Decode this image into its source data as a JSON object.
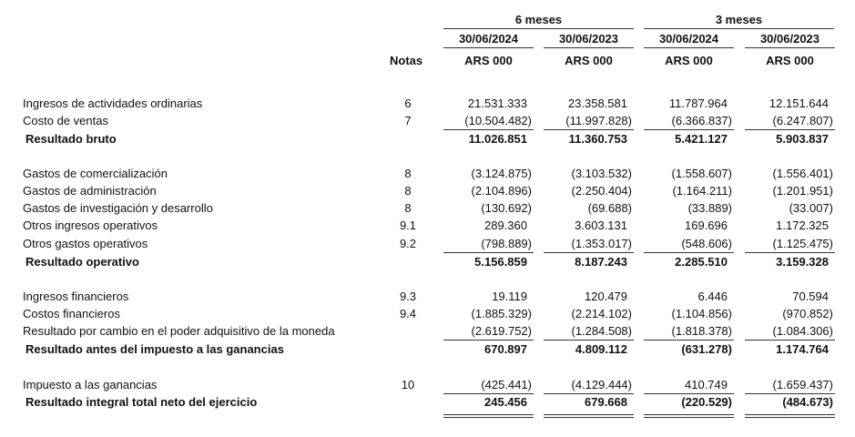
{
  "header": {
    "groups": [
      "6 meses",
      "3 meses"
    ],
    "dates": [
      "30/06/2024",
      "30/06/2023",
      "30/06/2024",
      "30/06/2023"
    ],
    "notes_label": "Notas",
    "currency": [
      "ARS 000",
      "ARS 000",
      "ARS 000",
      "ARS 000"
    ]
  },
  "rows": [
    {
      "label": "Ingresos de actividades ordinarias",
      "note": "6",
      "values": [
        "21.531.333",
        "23.358.581",
        "11.787.964",
        "12.151.644"
      ],
      "bold": false
    },
    {
      "label": "Costo de ventas",
      "note": "7",
      "values": [
        "(10.504.482)",
        "(11.997.828)",
        "(6.366.837)",
        "(6.247.807)"
      ],
      "bold": false
    },
    {
      "label": "Resultado bruto",
      "note": "",
      "values": [
        "11.026.851",
        "11.360.753",
        "5.421.127",
        "5.903.837"
      ],
      "bold": true
    },
    {
      "label": "Gastos de comercialización",
      "note": "8",
      "values": [
        "(3.124.875)",
        "(3.103.532)",
        "(1.558.607)",
        "(1.556.401)"
      ],
      "bold": false
    },
    {
      "label": "Gastos de administración",
      "note": "8",
      "values": [
        "(2.104.896)",
        "(2.250.404)",
        "(1.164.211)",
        "(1.201.951)"
      ],
      "bold": false
    },
    {
      "label": "Gastos de investigación y desarrollo",
      "note": "8",
      "values": [
        "(130.692)",
        "(69.688)",
        "(33.889)",
        "(33.007)"
      ],
      "bold": false
    },
    {
      "label": "Otros ingresos operativos",
      "note": "9.1",
      "values": [
        "289.360",
        "3.603.131",
        "169.696",
        "1.172.325"
      ],
      "bold": false
    },
    {
      "label": "Otros gastos operativos",
      "note": "9.2",
      "values": [
        "(798.889)",
        "(1.353.017)",
        "(548.606)",
        "(1.125.475)"
      ],
      "bold": false
    },
    {
      "label": "Resultado operativo",
      "note": "",
      "values": [
        "5.156.859",
        "8.187.243",
        "2.285.510",
        "3.159.328"
      ],
      "bold": true
    },
    {
      "label": "Ingresos financieros",
      "note": "9.3",
      "values": [
        "19.119",
        "120.479",
        "6.446",
        "70.594"
      ],
      "bold": false
    },
    {
      "label": "Costos financieros",
      "note": "9.4",
      "values": [
        "(1.885.329)",
        "(2.214.102)",
        "(1.104.856)",
        "(970.852)"
      ],
      "bold": false
    },
    {
      "label": "Resultado por cambio en el poder adquisitivo de la moneda",
      "note": "",
      "values": [
        "(2.619.752)",
        "(1.284.508)",
        "(1.818.378)",
        "(1.084.306)"
      ],
      "bold": false
    },
    {
      "label": "Resultado antes del impuesto a las ganancias",
      "note": "",
      "values": [
        "670.897",
        "4.809.112",
        "(631.278)",
        "1.174.764"
      ],
      "bold": true
    },
    {
      "label": "Impuesto a las ganancias",
      "note": "10",
      "values": [
        "(425.441)",
        "(4.129.444)",
        "410.749",
        "(1.659.437)"
      ],
      "bold": false
    },
    {
      "label": "Resultado integral total neto del ejercicio",
      "note": "",
      "values": [
        "245.456",
        "679.668",
        "(220.529)",
        "(484.673)"
      ],
      "bold": true
    }
  ]
}
